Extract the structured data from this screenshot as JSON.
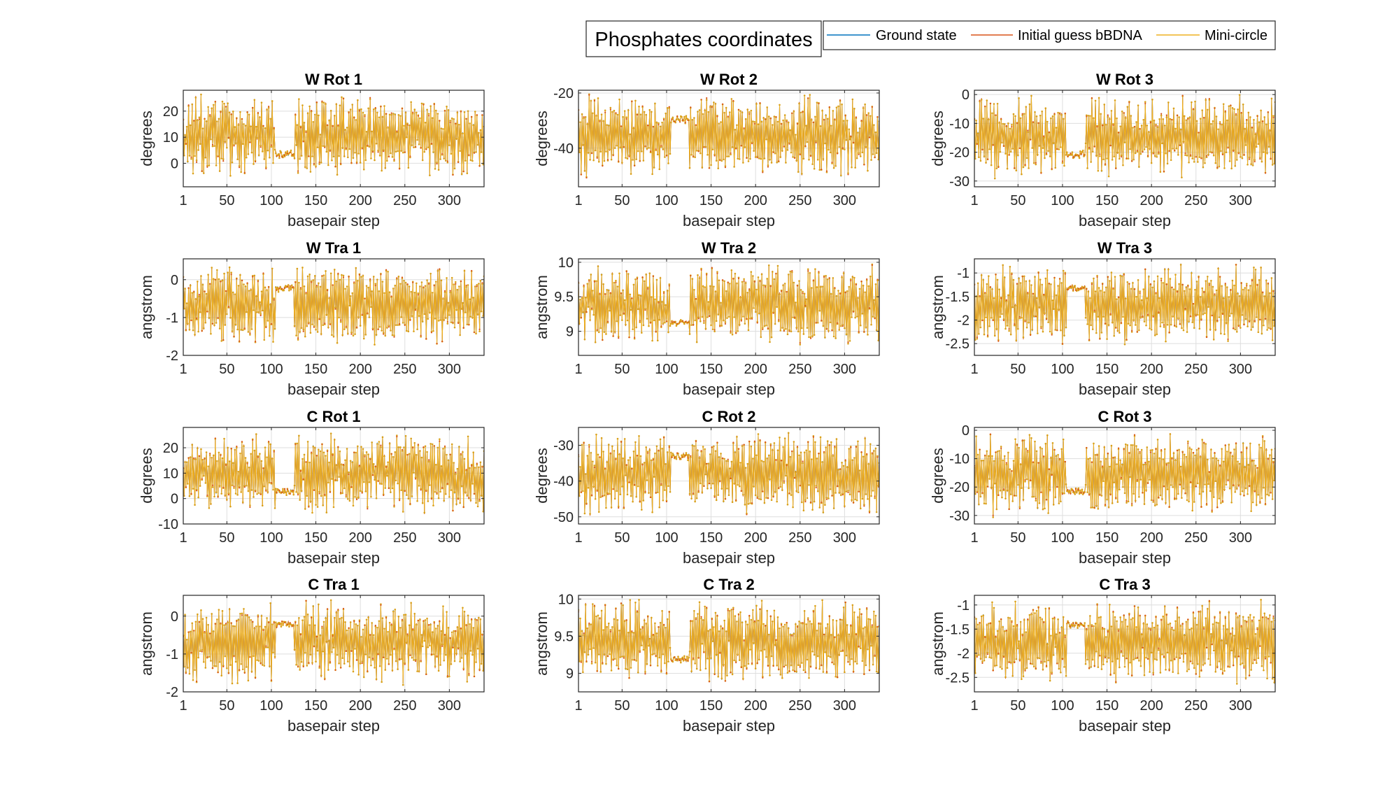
{
  "figure_title": "Phosphates coordinates",
  "colors": {
    "ground": "#0072BD",
    "initial": "#D95319",
    "mini": "#EDB120",
    "axis": "#262626",
    "grid": "#dedede"
  },
  "chart_data": [
    {
      "type": "line",
      "title": "W Rot 1",
      "xlabel": "basepair step",
      "ylabel": "degrees",
      "xlim": [
        1,
        339
      ],
      "ylim": [
        -9,
        28
      ],
      "xticks": [
        1,
        50,
        100,
        150,
        200,
        250,
        300
      ],
      "yticks": [
        0,
        10,
        20
      ],
      "series": [
        {
          "name": "Ground state",
          "values": []
        },
        {
          "name": "Initial guess bBDNA",
          "values": []
        },
        {
          "name": "Mini-circle",
          "values": []
        }
      ]
    },
    {
      "type": "line",
      "title": "W Rot 2",
      "xlabel": "basepair step",
      "ylabel": "degrees",
      "xlim": [
        1,
        339
      ],
      "ylim": [
        -54,
        -19
      ],
      "xticks": [
        1,
        50,
        100,
        150,
        200,
        250,
        300
      ],
      "yticks": [
        -40,
        -20
      ],
      "series": [
        {
          "name": "Ground state",
          "values": []
        },
        {
          "name": "Initial guess bBDNA",
          "values": []
        },
        {
          "name": "Mini-circle",
          "values": []
        }
      ]
    },
    {
      "type": "line",
      "title": "W Rot 3",
      "xlabel": "basepair step",
      "ylabel": "degrees",
      "xlim": [
        1,
        339
      ],
      "ylim": [
        -32,
        1.5
      ],
      "xticks": [
        1,
        50,
        100,
        150,
        200,
        250,
        300
      ],
      "yticks": [
        -30,
        -20,
        -10,
        0
      ],
      "series": [
        {
          "name": "Ground state",
          "values": []
        },
        {
          "name": "Initial guess bBDNA",
          "values": []
        },
        {
          "name": "Mini-circle",
          "values": []
        }
      ]
    },
    {
      "type": "line",
      "title": "W Tra 1",
      "xlabel": "basepair step",
      "ylabel": "angstrom",
      "xlim": [
        1,
        339
      ],
      "ylim": [
        -2,
        0.55
      ],
      "xticks": [
        1,
        50,
        100,
        150,
        200,
        250,
        300
      ],
      "yticks": [
        -2,
        -1,
        0
      ],
      "series": [
        {
          "name": "Ground state",
          "values": []
        },
        {
          "name": "Initial guess bBDNA",
          "values": []
        },
        {
          "name": "Mini-circle",
          "values": []
        }
      ]
    },
    {
      "type": "line",
      "title": "W Tra 2",
      "xlabel": "basepair step",
      "ylabel": "angstrom",
      "xlim": [
        1,
        339
      ],
      "ylim": [
        8.65,
        10.05
      ],
      "xticks": [
        1,
        50,
        100,
        150,
        200,
        250,
        300
      ],
      "yticks": [
        9,
        9.5,
        10
      ],
      "series": [
        {
          "name": "Ground state",
          "values": []
        },
        {
          "name": "Initial guess bBDNA",
          "values": []
        },
        {
          "name": "Mini-circle",
          "values": []
        }
      ]
    },
    {
      "type": "line",
      "title": "W Tra 3",
      "xlabel": "basepair step",
      "ylabel": "angstrom",
      "xlim": [
        1,
        339
      ],
      "ylim": [
        -2.75,
        -0.7
      ],
      "xticks": [
        1,
        50,
        100,
        150,
        200,
        250,
        300
      ],
      "yticks": [
        -2.5,
        -2,
        -1.5,
        -1
      ],
      "series": [
        {
          "name": "Ground state",
          "values": []
        },
        {
          "name": "Initial guess bBDNA",
          "values": []
        },
        {
          "name": "Mini-circle",
          "values": []
        }
      ]
    },
    {
      "type": "line",
      "title": "C Rot 1",
      "xlabel": "basepair step",
      "ylabel": "degrees",
      "xlim": [
        1,
        339
      ],
      "ylim": [
        -10,
        28
      ],
      "xticks": [
        1,
        50,
        100,
        150,
        200,
        250,
        300
      ],
      "yticks": [
        -10,
        0,
        10,
        20
      ],
      "series": [
        {
          "name": "Ground state",
          "values": []
        },
        {
          "name": "Initial guess bBDNA",
          "values": []
        },
        {
          "name": "Mini-circle",
          "values": []
        }
      ]
    },
    {
      "type": "line",
      "title": "C Rot 2",
      "xlabel": "basepair step",
      "ylabel": "degrees",
      "xlim": [
        1,
        339
      ],
      "ylim": [
        -52,
        -25
      ],
      "xticks": [
        1,
        50,
        100,
        150,
        200,
        250,
        300
      ],
      "yticks": [
        -50,
        -40,
        -30
      ],
      "series": [
        {
          "name": "Ground state",
          "values": []
        },
        {
          "name": "Initial guess bBDNA",
          "values": []
        },
        {
          "name": "Mini-circle",
          "values": []
        }
      ]
    },
    {
      "type": "line",
      "title": "C Rot 3",
      "xlabel": "basepair step",
      "ylabel": "degrees",
      "xlim": [
        1,
        339
      ],
      "ylim": [
        -33,
        1
      ],
      "xticks": [
        1,
        50,
        100,
        150,
        200,
        250,
        300
      ],
      "yticks": [
        -30,
        -20,
        -10,
        0
      ],
      "series": [
        {
          "name": "Ground state",
          "values": []
        },
        {
          "name": "Initial guess bBDNA",
          "values": []
        },
        {
          "name": "Mini-circle",
          "values": []
        }
      ]
    },
    {
      "type": "line",
      "title": "C Tra 1",
      "xlabel": "basepair step",
      "ylabel": "angstrom",
      "xlim": [
        1,
        339
      ],
      "ylim": [
        -2,
        0.55
      ],
      "xticks": [
        1,
        50,
        100,
        150,
        200,
        250,
        300
      ],
      "yticks": [
        -2,
        -1,
        0
      ],
      "series": [
        {
          "name": "Ground state",
          "values": []
        },
        {
          "name": "Initial guess bBDNA",
          "values": []
        },
        {
          "name": "Mini-circle",
          "values": []
        }
      ]
    },
    {
      "type": "line",
      "title": "C Tra 2",
      "xlabel": "basepair step",
      "ylabel": "angstrom",
      "xlim": [
        1,
        339
      ],
      "ylim": [
        8.75,
        10.05
      ],
      "xticks": [
        1,
        50,
        100,
        150,
        200,
        250,
        300
      ],
      "yticks": [
        9,
        9.5,
        10
      ],
      "series": [
        {
          "name": "Ground state",
          "values": []
        },
        {
          "name": "Initial guess bBDNA",
          "values": []
        },
        {
          "name": "Mini-circle",
          "values": []
        }
      ]
    },
    {
      "type": "line",
      "title": "C Tra 3",
      "xlabel": "basepair step",
      "ylabel": "angstrom",
      "xlim": [
        1,
        339
      ],
      "ylim": [
        -2.8,
        -0.8
      ],
      "xticks": [
        1,
        50,
        100,
        150,
        200,
        250,
        300
      ],
      "yticks": [
        -2.5,
        -2,
        -1.5,
        -1
      ],
      "series": [
        {
          "name": "Ground state",
          "values": []
        },
        {
          "name": "Initial guess bBDNA",
          "values": []
        },
        {
          "name": "Mini-circle",
          "values": []
        }
      ]
    }
  ]
}
